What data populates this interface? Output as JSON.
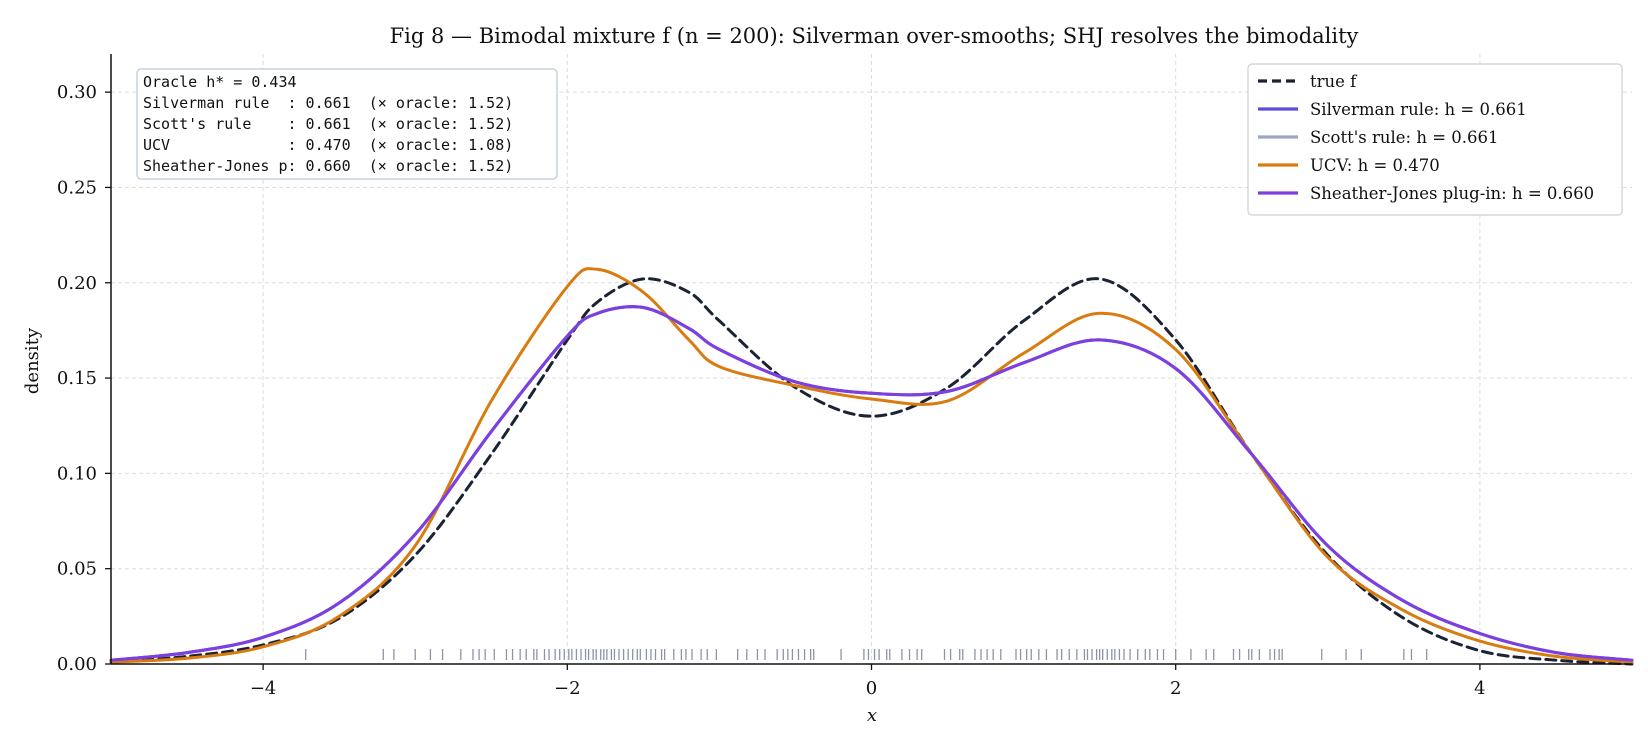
{
  "chart_data": {
    "type": "line",
    "title": "Fig 8 — Bimodal mixture f (n = 200): Silverman over-smooths; SHJ resolves the bimodality",
    "xlabel": "x",
    "ylabel": "density",
    "xlim": [
      -5,
      5
    ],
    "ylim": [
      0,
      0.32
    ],
    "xticks": [
      -4,
      -2,
      0,
      2,
      4
    ],
    "xtick_labels": [
      "−4",
      "−2",
      "0",
      "2",
      "4"
    ],
    "yticks": [
      0,
      0.05,
      0.1,
      0.15,
      0.2,
      0.25,
      0.3
    ],
    "ytick_labels": [
      "0.00",
      "0.05",
      "0.10",
      "0.15",
      "0.20",
      "0.25",
      "0.30"
    ],
    "grid": true,
    "legend_position": "top-right",
    "x": [
      -5.0,
      -4.5,
      -4.0,
      -3.5,
      -3.0,
      -2.5,
      -2.0,
      -1.8,
      -1.5,
      -1.2,
      -1.0,
      -0.5,
      0.0,
      0.5,
      1.0,
      1.5,
      2.0,
      2.5,
      3.0,
      3.5,
      4.0,
      4.5,
      5.0
    ],
    "series": [
      {
        "name": "true f",
        "color": "#1a2233",
        "dash": true,
        "values": [
          0.001,
          0.004,
          0.01,
          0.024,
          0.057,
          0.11,
          0.17,
          0.19,
          0.202,
          0.195,
          0.18,
          0.145,
          0.13,
          0.145,
          0.18,
          0.202,
          0.17,
          0.11,
          0.057,
          0.024,
          0.007,
          0.002,
          0.0
        ]
      },
      {
        "name": "Silverman rule: h = 0.661",
        "color": "#5b4fe0",
        "dash": false,
        "values": [
          0.002,
          0.006,
          0.014,
          0.032,
          0.068,
          0.122,
          0.172,
          0.184,
          0.187,
          0.176,
          0.165,
          0.148,
          0.142,
          0.143,
          0.158,
          0.17,
          0.155,
          0.11,
          0.062,
          0.033,
          0.016,
          0.006,
          0.002
        ]
      },
      {
        "name": "Scott's rule: h = 0.661",
        "color": "#9ca6bd",
        "dash": false,
        "values": [
          0.002,
          0.006,
          0.014,
          0.032,
          0.068,
          0.122,
          0.172,
          0.184,
          0.187,
          0.176,
          0.165,
          0.148,
          0.142,
          0.143,
          0.158,
          0.17,
          0.155,
          0.11,
          0.062,
          0.033,
          0.016,
          0.006,
          0.002
        ]
      },
      {
        "name": "UCV: h = 0.470",
        "color": "#d97b0f",
        "dash": false,
        "values": [
          0.001,
          0.003,
          0.009,
          0.025,
          0.062,
          0.138,
          0.198,
          0.207,
          0.195,
          0.17,
          0.156,
          0.146,
          0.139,
          0.138,
          0.163,
          0.184,
          0.165,
          0.11,
          0.056,
          0.028,
          0.012,
          0.004,
          0.001
        ]
      },
      {
        "name": "Sheather-Jones plug-in: h = 0.660",
        "color": "#7d3fe0",
        "dash": false,
        "values": [
          0.002,
          0.006,
          0.014,
          0.032,
          0.068,
          0.122,
          0.172,
          0.184,
          0.187,
          0.176,
          0.165,
          0.148,
          0.142,
          0.143,
          0.158,
          0.17,
          0.155,
          0.11,
          0.062,
          0.033,
          0.016,
          0.006,
          0.002
        ]
      }
    ],
    "legend": [
      {
        "label": "true f",
        "color": "#1a2233",
        "dash": true
      },
      {
        "label": "Silverman rule: h = 0.661",
        "color": "#5b4fe0",
        "dash": false
      },
      {
        "label": "Scott's rule: h = 0.661",
        "color": "#9ca6bd",
        "dash": false
      },
      {
        "label": "UCV: h = 0.470",
        "color": "#d97b0f",
        "dash": false
      },
      {
        "label": "Sheather-Jones plug-in: h = 0.660",
        "color": "#7d3fe0",
        "dash": false
      }
    ],
    "info_box": [
      "Oracle h* = 0.434",
      "Silverman rule  : 0.661  (× oracle: 1.52)",
      "Scott's rule    : 0.661  (× oracle: 1.52)",
      "UCV             : 0.470  (× oracle: 1.08)",
      "Sheather-Jones p: 0.660  (× oracle: 1.52)"
    ],
    "rug": {
      "color": "#8a93a8",
      "x": [
        -3.72,
        -3.21,
        -3.14,
        -3.0,
        -2.9,
        -2.82,
        -2.7,
        -2.62,
        -2.58,
        -2.54,
        -2.48,
        -2.4,
        -2.36,
        -2.31,
        -2.27,
        -2.22,
        -2.2,
        -2.15,
        -2.12,
        -2.08,
        -2.05,
        -2.02,
        -1.99,
        -1.97,
        -1.94,
        -1.91,
        -1.88,
        -1.86,
        -1.83,
        -1.81,
        -1.78,
        -1.76,
        -1.74,
        -1.71,
        -1.69,
        -1.66,
        -1.63,
        -1.6,
        -1.57,
        -1.54,
        -1.52,
        -1.48,
        -1.45,
        -1.42,
        -1.38,
        -1.36,
        -1.3,
        -1.25,
        -1.22,
        -1.18,
        -1.12,
        -1.08,
        -1.02,
        -0.88,
        -0.82,
        -0.75,
        -0.7,
        -0.62,
        -0.58,
        -0.55,
        -0.52,
        -0.48,
        -0.44,
        -0.4,
        -0.38,
        -0.2,
        -0.05,
        -0.02,
        0.02,
        0.05,
        0.1,
        0.12,
        0.2,
        0.25,
        0.3,
        0.33,
        0.48,
        0.52,
        0.58,
        0.6,
        0.68,
        0.72,
        0.76,
        0.8,
        0.85,
        0.95,
        0.98,
        1.02,
        1.05,
        1.1,
        1.15,
        1.22,
        1.25,
        1.3,
        1.35,
        1.4,
        1.42,
        1.45,
        1.48,
        1.5,
        1.52,
        1.55,
        1.58,
        1.6,
        1.63,
        1.66,
        1.7,
        1.75,
        1.8,
        1.83,
        1.88,
        1.92,
        2.0,
        2.1,
        2.2,
        2.25,
        2.38,
        2.42,
        2.48,
        2.5,
        2.55,
        2.62,
        2.65,
        2.68,
        2.7,
        2.96,
        3.12,
        3.22,
        3.5,
        3.55,
        3.65
      ]
    }
  }
}
